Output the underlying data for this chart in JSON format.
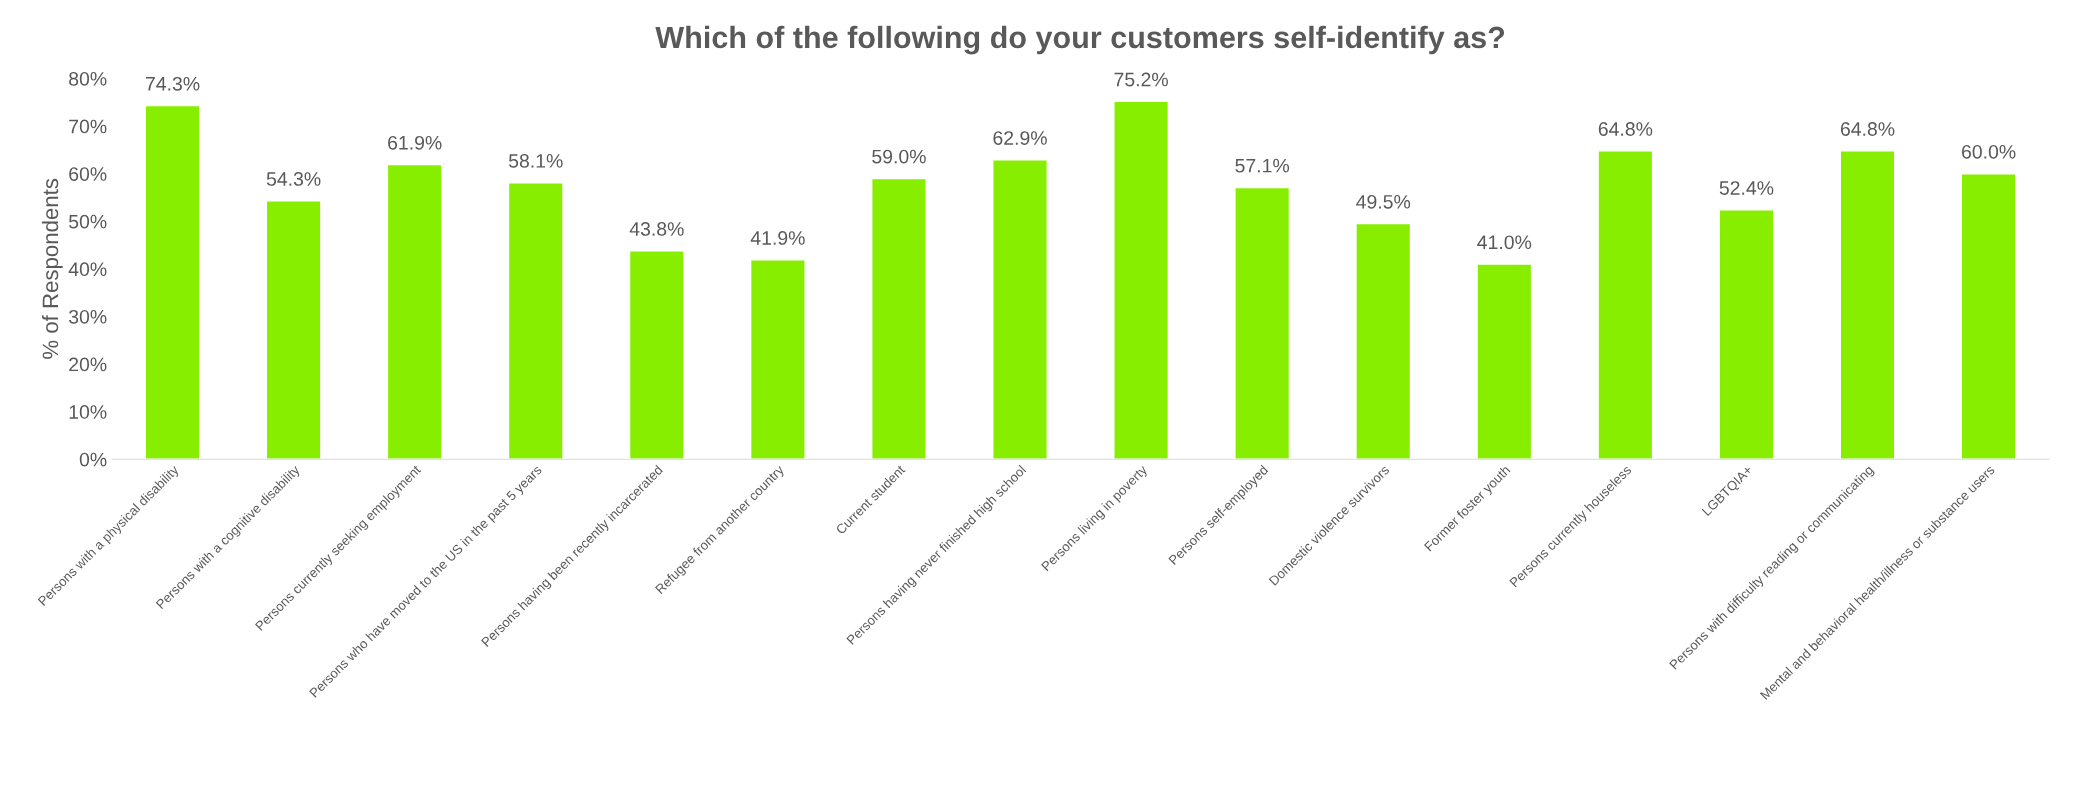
{
  "chart_data": {
    "type": "bar",
    "title": "Which of the following do your customers self-identify as?",
    "ylabel": "% of Respondents",
    "categories": [
      "Persons with a physical disability",
      "Persons with a cognitive disability",
      "Persons currently seeking employment",
      "Persons who have moved to the US in the past 5 years",
      "Persons having been recently incarcerated",
      "Refugee from another country",
      "Current student",
      "Persons having never finished high school",
      "Persons living in poverty",
      "Persons self-employed",
      "Domestic violence survivors",
      "Former foster youth",
      "Persons currently houseless",
      "LGBTQIA+",
      "Persons with difficulty reading or communicating",
      "Mental and behavioral health/illness or substance users"
    ],
    "values": [
      74.3,
      54.3,
      61.9,
      58.1,
      43.8,
      41.9,
      59.0,
      62.9,
      75.2,
      57.1,
      49.5,
      41.0,
      64.8,
      52.4,
      64.8,
      60.0
    ],
    "value_labels": [
      "74.3%",
      "54.3%",
      "61.9%",
      "58.1%",
      "43.8%",
      "41.9%",
      "59.0%",
      "62.9%",
      "75.2%",
      "57.1%",
      "49.5%",
      "41.0%",
      "64.8%",
      "52.4%",
      "64.8%",
      "60.0%"
    ],
    "color": "#88ee00",
    "ylim": [
      0,
      80
    ],
    "yticks": [
      {
        "value": 0,
        "label": "0%"
      },
      {
        "value": 10,
        "label": "10%"
      },
      {
        "value": 20,
        "label": "20%"
      },
      {
        "value": 30,
        "label": "30%"
      },
      {
        "value": 40,
        "label": "40%"
      },
      {
        "value": 50,
        "label": "50%"
      },
      {
        "value": 60,
        "label": "60%"
      },
      {
        "value": 70,
        "label": "70%"
      },
      {
        "value": 80,
        "label": "80%"
      }
    ],
    "grid": false,
    "legend": false
  }
}
